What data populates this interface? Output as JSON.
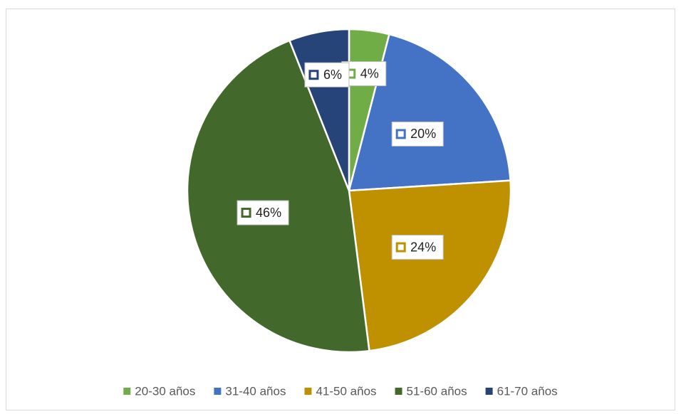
{
  "chart_data": {
    "type": "pie",
    "categories": [
      "20-30 años",
      "31-40 años",
      "41-50 años",
      "51-60 años",
      "61-70 años"
    ],
    "values": [
      4,
      20,
      24,
      46,
      6
    ],
    "value_labels": [
      "4%",
      "20%",
      "24%",
      "46%",
      "6%"
    ],
    "colors": [
      "#70ad47",
      "#4472c4",
      "#bf9000",
      "#43682b",
      "#264478"
    ],
    "legend": "bottom"
  }
}
